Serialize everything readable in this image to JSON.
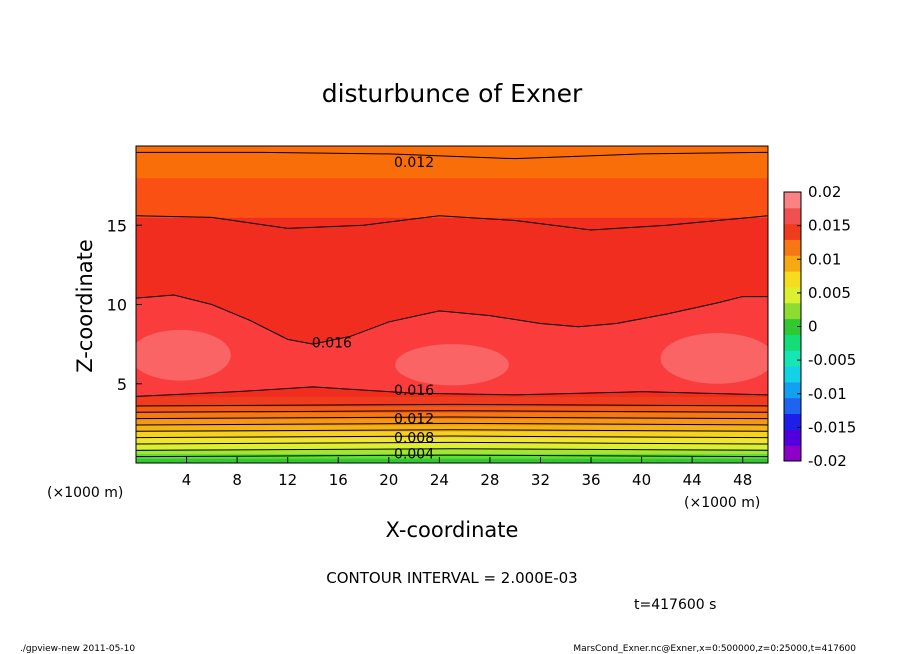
{
  "chart_data": {
    "type": "contour",
    "title": "disturbunce of Exner",
    "xlabel": "X-coordinate",
    "ylabel": "Z-coordinate",
    "x_unit_label": "(×1000 m)",
    "y_unit_label": "(×1000 m)",
    "xlim": [
      0,
      50
    ],
    "ylim": [
      0,
      20
    ],
    "x_ticks": [
      4,
      8,
      12,
      16,
      20,
      24,
      28,
      32,
      36,
      40,
      44,
      48
    ],
    "y_ticks": [
      5,
      10,
      15
    ],
    "contour_interval_text": "CONTOUR INTERVAL = 2.000E-03",
    "time_text": "t=417600 s",
    "colorbar": {
      "ticks": [
        "0.02",
        "0.015",
        "0.01",
        "0.005",
        "0",
        "-0.005",
        "-0.01",
        "-0.015",
        "-0.02"
      ],
      "range": [
        -0.02,
        0.02
      ]
    },
    "bands": [
      {
        "z_top": 0.3,
        "color": "#32c832"
      },
      {
        "z_top": 0.6,
        "color": "#64dc32"
      },
      {
        "z_top": 0.9,
        "color": "#a0e632"
      },
      {
        "z_top": 1.2,
        "color": "#dcf032"
      },
      {
        "z_top": 1.6,
        "color": "#f0e632"
      },
      {
        "z_top": 2.0,
        "color": "#f5d21e"
      },
      {
        "z_top": 2.4,
        "color": "#f5b414"
      },
      {
        "z_top": 2.8,
        "color": "#f59614"
      },
      {
        "z_top": 3.2,
        "color": "#f57814"
      },
      {
        "z_top": 3.6,
        "color": "#f55a14"
      },
      {
        "z_top": 4.2,
        "color": "#f03c1e"
      },
      {
        "z_top": 15.5,
        "color": "#f02d1e"
      },
      {
        "z_top": 18.0,
        "color": "#fa5014"
      },
      {
        "z_top": 20.0,
        "color": "#fa6e0a"
      }
    ],
    "inner_bands": [
      {
        "name": "0.018 region",
        "color": "#fa3c3c"
      },
      {
        "name": "0.019 lobes",
        "color": "#fa6464"
      }
    ],
    "contour_labels": [
      {
        "text": "0.012",
        "x": 22,
        "z": 19.0
      },
      {
        "text": "0.016",
        "x": 15.5,
        "z": 7.6
      },
      {
        "text": "0.016",
        "x": 22,
        "z": 4.6
      },
      {
        "text": "0.012",
        "x": 22,
        "z": 2.8
      },
      {
        "text": "0.008",
        "x": 22,
        "z": 1.6
      },
      {
        "text": "0.004",
        "x": 22,
        "z": 0.6
      }
    ]
  },
  "footer": {
    "left": "./gpview-new   2011-05-10",
    "right": "MarsCond_Exner.nc@Exner,x=0:500000,z=0:25000,t=417600"
  }
}
